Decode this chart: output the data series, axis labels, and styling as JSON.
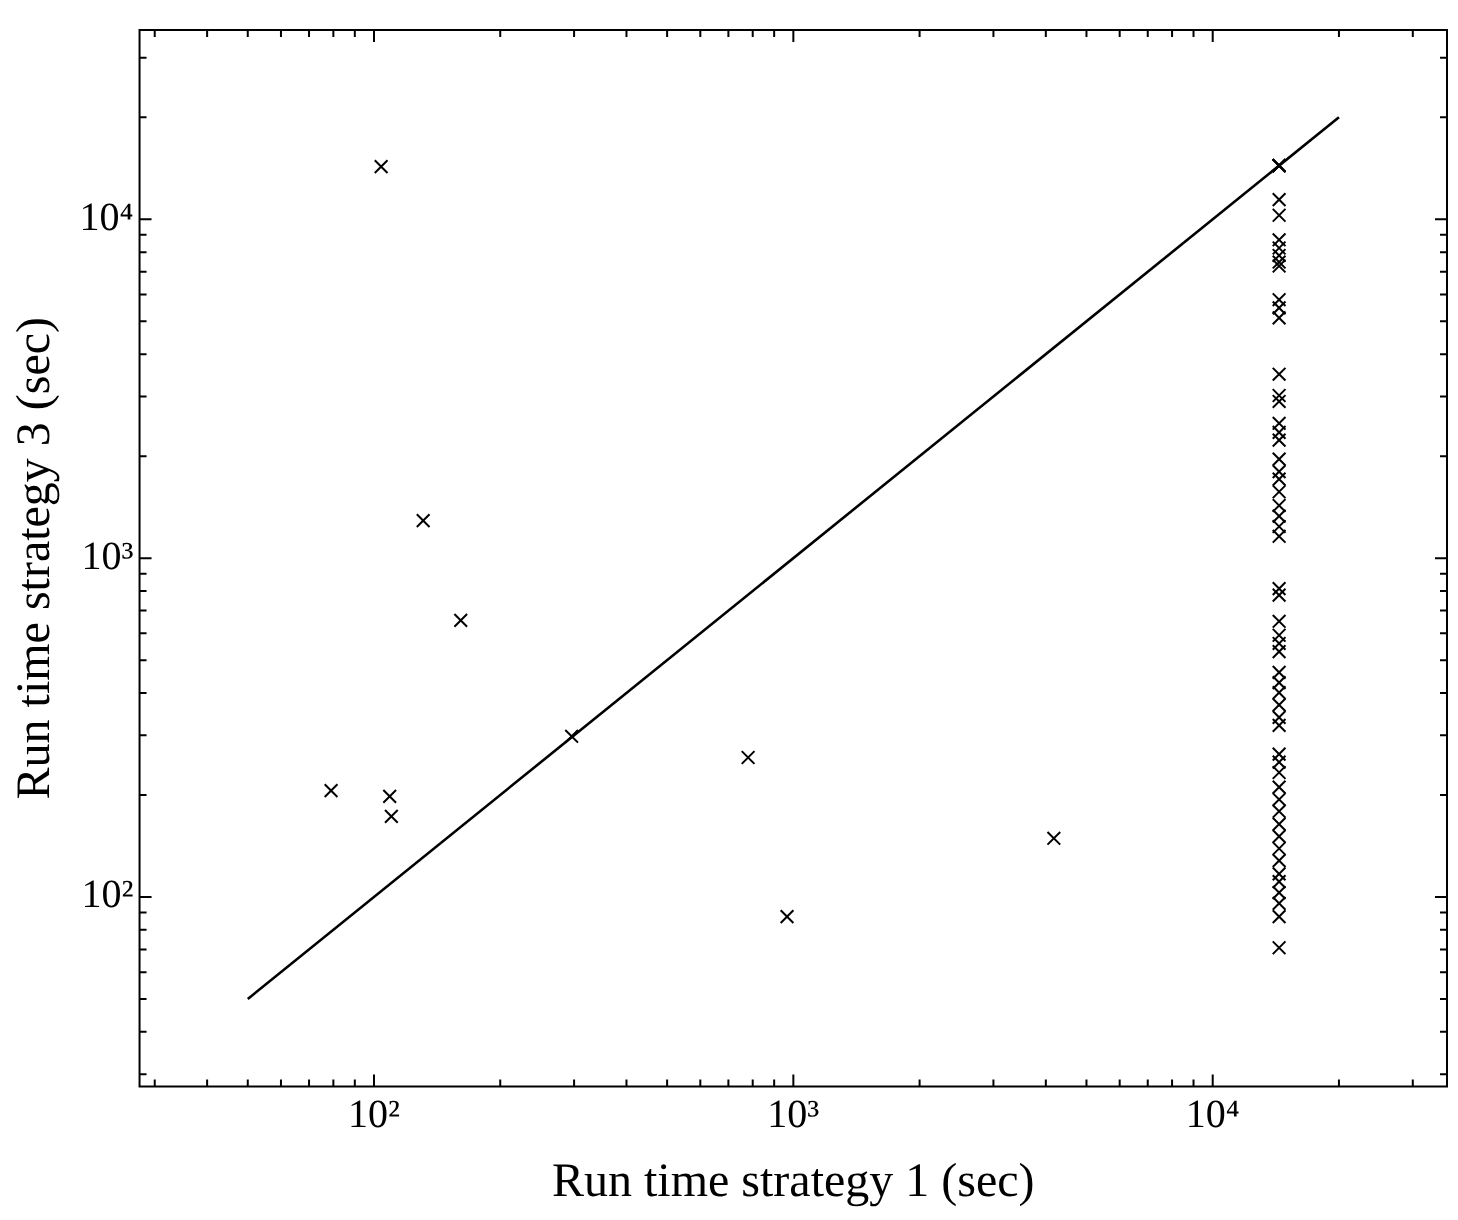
{
  "chart_data": {
    "type": "scatter",
    "xlabel": "Run time strategy 1 (sec)",
    "ylabel": "Run time strategy 3 (sec)",
    "log": "xy",
    "grid": false,
    "legend": false,
    "marker": "cross",
    "xlim": [
      27.6,
      36200
    ],
    "ylim": [
      27.6,
      36200
    ],
    "xticks": [
      {
        "value": 30,
        "label": null
      },
      {
        "value": 40,
        "label": null
      },
      {
        "value": 50,
        "label": null
      },
      {
        "value": 60,
        "label": null
      },
      {
        "value": 70,
        "label": null
      },
      {
        "value": 80,
        "label": null
      },
      {
        "value": 90,
        "label": null
      },
      {
        "value": 100,
        "label": "10²"
      },
      {
        "value": 200,
        "label": null
      },
      {
        "value": 300,
        "label": null
      },
      {
        "value": 400,
        "label": null
      },
      {
        "value": 500,
        "label": null
      },
      {
        "value": 600,
        "label": null
      },
      {
        "value": 700,
        "label": null
      },
      {
        "value": 800,
        "label": null
      },
      {
        "value": 900,
        "label": null
      },
      {
        "value": 1000,
        "label": "10³"
      },
      {
        "value": 2000,
        "label": null
      },
      {
        "value": 3000,
        "label": null
      },
      {
        "value": 4000,
        "label": null
      },
      {
        "value": 5000,
        "label": null
      },
      {
        "value": 6000,
        "label": null
      },
      {
        "value": 7000,
        "label": null
      },
      {
        "value": 8000,
        "label": null
      },
      {
        "value": 9000,
        "label": null
      },
      {
        "value": 10000,
        "label": "10⁴"
      },
      {
        "value": 20000,
        "label": null
      },
      {
        "value": 30000,
        "label": null
      }
    ],
    "yticks": [
      {
        "value": 30,
        "label": null
      },
      {
        "value": 40,
        "label": null
      },
      {
        "value": 50,
        "label": null
      },
      {
        "value": 60,
        "label": null
      },
      {
        "value": 70,
        "label": null
      },
      {
        "value": 80,
        "label": null
      },
      {
        "value": 90,
        "label": null
      },
      {
        "value": 100,
        "label": "10²"
      },
      {
        "value": 200,
        "label": null
      },
      {
        "value": 300,
        "label": null
      },
      {
        "value": 400,
        "label": null
      },
      {
        "value": 500,
        "label": null
      },
      {
        "value": 600,
        "label": null
      },
      {
        "value": 700,
        "label": null
      },
      {
        "value": 800,
        "label": null
      },
      {
        "value": 900,
        "label": null
      },
      {
        "value": 1000,
        "label": "10³"
      },
      {
        "value": 2000,
        "label": null
      },
      {
        "value": 3000,
        "label": null
      },
      {
        "value": 4000,
        "label": null
      },
      {
        "value": 5000,
        "label": null
      },
      {
        "value": 6000,
        "label": null
      },
      {
        "value": 7000,
        "label": null
      },
      {
        "value": 8000,
        "label": null
      },
      {
        "value": 9000,
        "label": null
      },
      {
        "value": 10000,
        "label": "10⁴"
      },
      {
        "value": 20000,
        "label": null
      },
      {
        "value": 30000,
        "label": null
      }
    ],
    "series": [
      {
        "type": "line",
        "color": "#000000",
        "marker": "none",
        "x": [
          50,
          20000
        ],
        "values": [
          50,
          20000
        ]
      },
      {
        "color": "#000000",
        "x": [
          104,
          131,
          161,
          79,
          109,
          110,
          296,
          780,
          966,
          4180,
          14400,
          14400,
          14400,
          14400,
          14400,
          14400,
          14400,
          14400,
          14400,
          14400,
          14400,
          14400,
          14400,
          14400,
          14400,
          14400,
          14400,
          14400,
          14400,
          14400,
          14400,
          14400,
          14400,
          14400,
          14400,
          14400,
          14400,
          14400,
          14400,
          14400,
          14400,
          14400,
          14400,
          14400,
          14400,
          14400,
          14400,
          14400,
          14400,
          14400,
          14400,
          14400,
          14400,
          14400,
          14400,
          14400,
          14400,
          14400,
          14400,
          14400,
          14400,
          14400,
          14400,
          14400,
          14400,
          14400
        ],
        "values": [
          14300,
          1290,
          655,
          206,
          198,
          173,
          298,
          258,
          87.5,
          149,
          14400,
          14400,
          14400,
          14400,
          11430,
          10280,
          8700,
          8230,
          7820,
          7480,
          7280,
          5790,
          5480,
          5120,
          3490,
          3020,
          2900,
          2500,
          2350,
          2230,
          1960,
          1800,
          1710,
          1570,
          1430,
          1330,
          1240,
          1160,
          813,
          778,
          651,
          592,
          560,
          530,
          460,
          429,
          401,
          369,
          339,
          321,
          264,
          250,
          233,
          211,
          194,
          179,
          164,
          151,
          139,
          128,
          117,
          111,
          103,
          95.7,
          87.5,
          70.8
        ]
      }
    ]
  }
}
